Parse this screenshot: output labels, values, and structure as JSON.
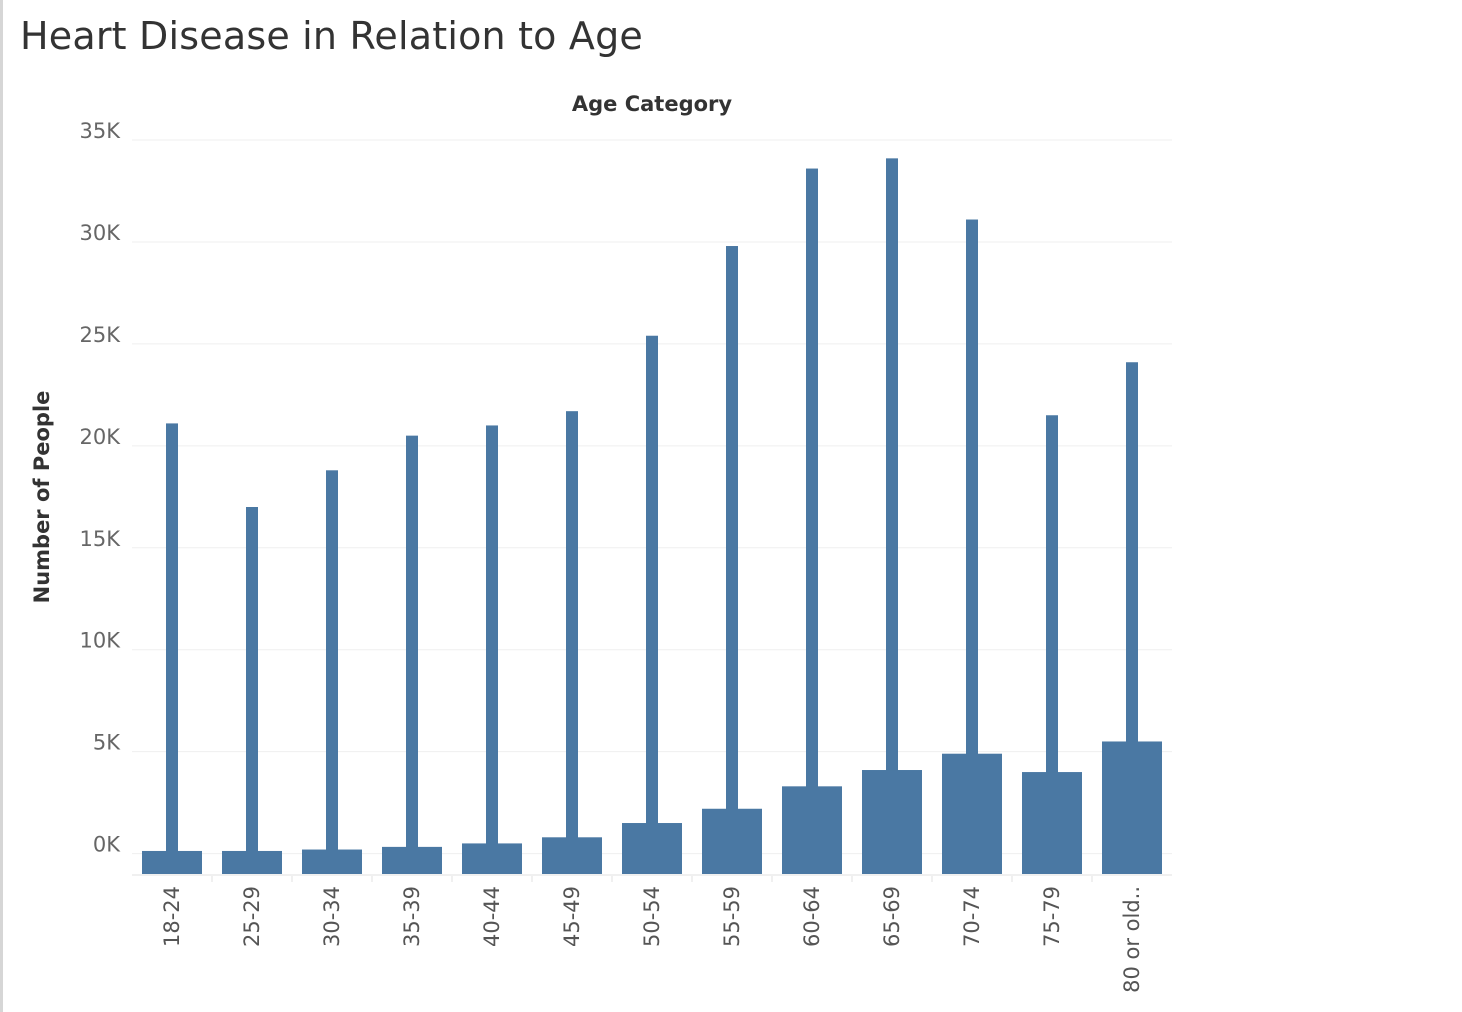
{
  "page": {
    "title": "Heart Disease in Relation to Age"
  },
  "chart_data": {
    "type": "bar",
    "title": "Heart Disease in Relation to Age",
    "xlabel": "Age Category",
    "ylabel": "Number of People",
    "categories": [
      "18-24",
      "25-29",
      "30-34",
      "35-39",
      "40-44",
      "45-49",
      "50-54",
      "55-59",
      "60-64",
      "65-69",
      "70-74",
      "75-79",
      "80 or old.."
    ],
    "series": [
      {
        "values": [
          21100,
          17000,
          18800,
          20500,
          21000,
          21700,
          25400,
          29800,
          33600,
          34100,
          31100,
          21500,
          24100
        ]
      },
      {
        "values": [
          130,
          130,
          200,
          330,
          500,
          800,
          1500,
          2200,
          3300,
          4100,
          4900,
          4000,
          5500
        ]
      }
    ],
    "ylim": [
      -1000,
      35000
    ],
    "yticks": [
      0,
      5000,
      10000,
      15000,
      20000,
      25000,
      30000,
      35000
    ],
    "ytick_labels": [
      "0K",
      "5K",
      "10K",
      "15K",
      "20K",
      "25K",
      "30K",
      "35K"
    ],
    "bar_color": "#4a78a3",
    "grid": true,
    "legend": "none"
  }
}
